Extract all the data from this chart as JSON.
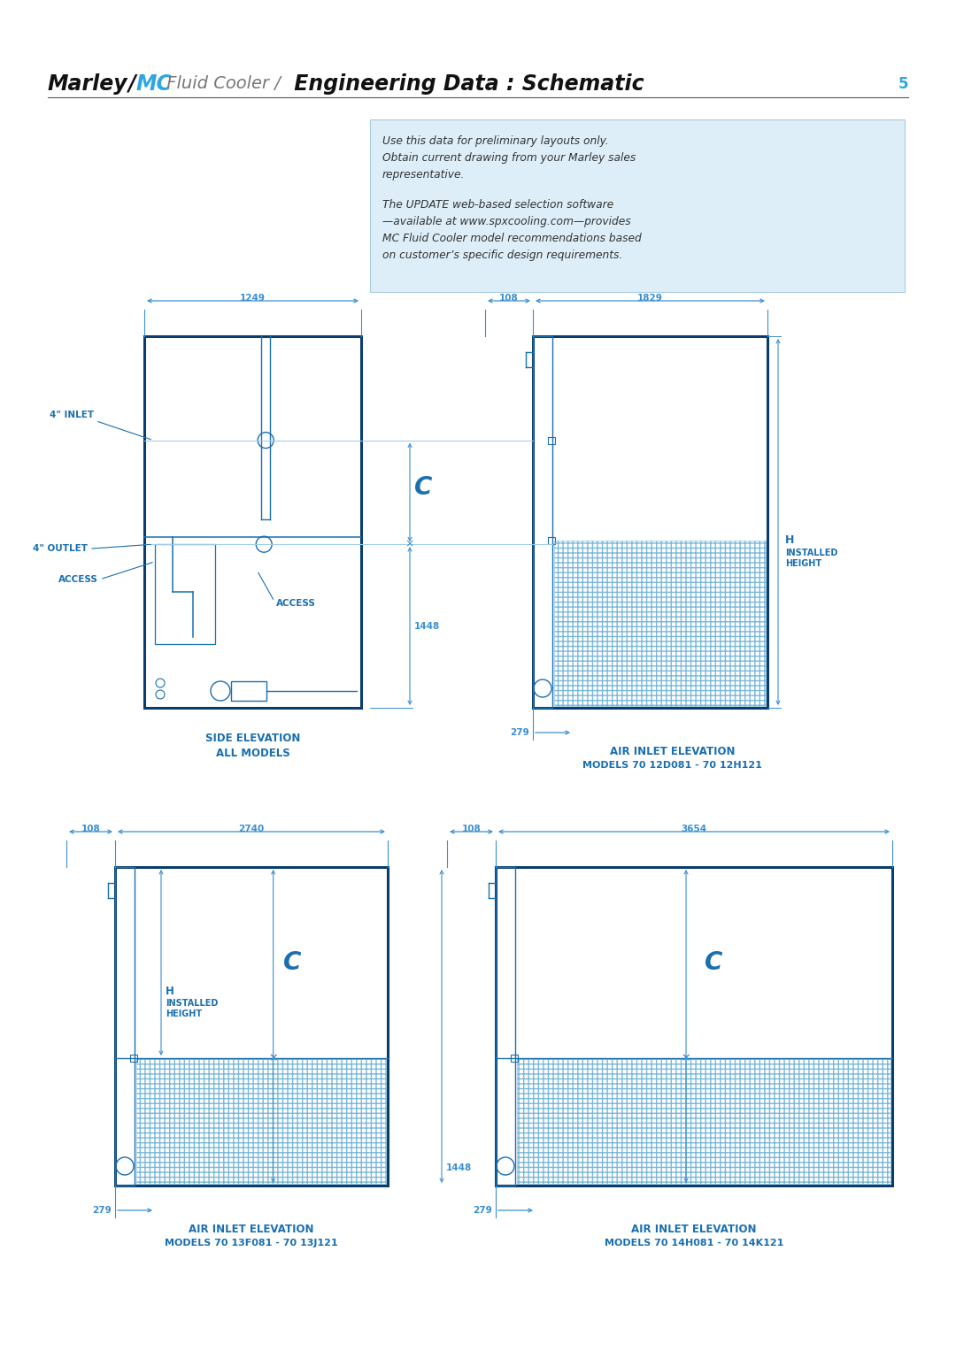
{
  "page_number": "5",
  "info_box_text1": "Use this data for preliminary layouts only.\nObtain current drawing from your Marley sales\nrepresentative.",
  "info_box_text2": "The UPDATE web-based selection software\n—available at www.spxcooling.com—provides\nMC Fluid Cooler model recommendations based\non customer’s specific design requirements.",
  "blue_main": "#1a6faf",
  "blue_mid": "#3a8fd0",
  "blue_light": "#a0cce8",
  "blue_dark": "#0a3d6b",
  "blue_hatch": "#7ab8d8",
  "info_bg": "#ddeef8",
  "text_blue": "#1a6faf",
  "dim_blue": "#3a8fd0"
}
